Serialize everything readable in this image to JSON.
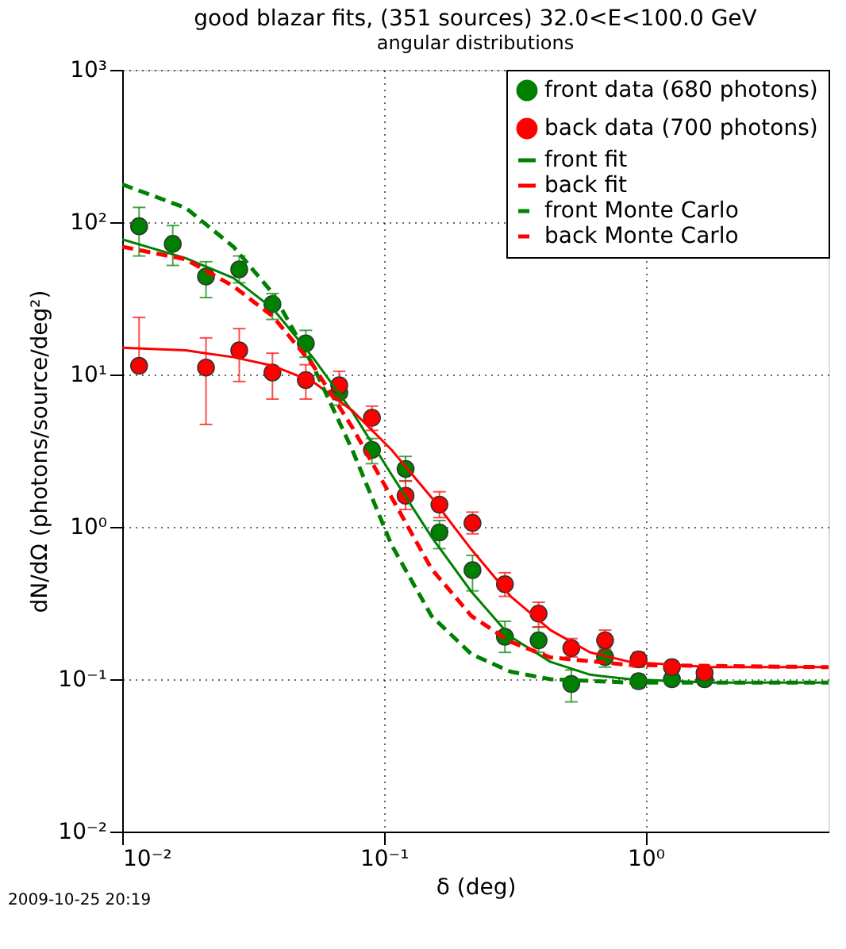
{
  "chart_data": {
    "type": "line",
    "title": "good blazar fits, (351 sources) 32.0<E<100.0 GeV",
    "subtitle": "angular distributions",
    "xlabel": "δ (deg)",
    "ylabel": "dN/dΩ (photons/source/deg²)",
    "annotations": [
      "2009-10-25 20:19"
    ],
    "log": "xy",
    "grid": true,
    "legend": "top right",
    "xlim": [
      0.01,
      5
    ],
    "xticks": [
      {
        "value": 0.01,
        "label": "10⁻²"
      },
      {
        "value": 0.1,
        "label": "10⁻¹"
      },
      {
        "value": 1,
        "label": "10⁰"
      }
    ],
    "ylim": [
      0.01,
      1000
    ],
    "yticks": [
      {
        "value": 0.01,
        "label": "10⁻²"
      },
      {
        "value": 0.1,
        "label": "10⁻¹"
      },
      {
        "value": 1,
        "label": "10⁰"
      },
      {
        "value": 10,
        "label": "10¹"
      },
      {
        "value": 100,
        "label": "10²"
      },
      {
        "value": 1000,
        "label": "10³"
      }
    ],
    "series": [
      {
        "name": "front data (680 photons)",
        "type": "scatter",
        "marker": "circle",
        "color": "#008000",
        "x": [
          0.0116,
          0.0156,
          0.0209,
          0.028,
          0.0375,
          0.0503,
          0.0675,
          0.09,
          0.121,
          0.163,
          0.218,
          0.29,
          0.39,
          0.52,
          0.7,
          0.94,
          1.26,
          1.68
        ],
        "values": [
          94,
          72,
          44,
          49,
          29,
          16,
          7.6,
          3.2,
          2.4,
          0.92,
          0.52,
          0.19,
          0.18,
          0.093,
          0.14,
          0.097,
          0.1,
          0.1
        ],
        "errors": [
          [
            60,
            125
          ],
          [
            52,
            95
          ],
          [
            32,
            55
          ],
          [
            40,
            60
          ],
          [
            23,
            34
          ],
          [
            13,
            19.5
          ],
          [
            6.3,
            9
          ],
          [
            2.6,
            3.8
          ],
          [
            2,
            2.9
          ],
          [
            0.72,
            1.1
          ],
          [
            0.38,
            0.65
          ],
          [
            0.15,
            0.24
          ],
          [
            0.15,
            0.22
          ],
          [
            0.071,
            0.115
          ],
          [
            0.12,
            0.16
          ],
          [
            0.088,
            0.107
          ],
          [
            0.095,
            0.11
          ],
          null
        ]
      },
      {
        "name": "back data (700 photons)",
        "type": "scatter",
        "marker": "circle",
        "color": "#ff0000",
        "x": [
          0.0116,
          0.0209,
          0.028,
          0.0375,
          0.0503,
          0.0675,
          0.09,
          0.121,
          0.163,
          0.218,
          0.29,
          0.39,
          0.52,
          0.7,
          0.94,
          1.26,
          1.68
        ],
        "values": [
          11.4,
          11.1,
          14.4,
          10.3,
          9.2,
          8.5,
          5.2,
          1.6,
          1.4,
          1.06,
          0.42,
          0.27,
          0.16,
          0.18,
          0.135,
          0.12,
          0.11
        ],
        "errors": [
          [
            11.4,
            23.7
          ],
          [
            4.7,
            17.4
          ],
          [
            9,
            20
          ],
          [
            6.9,
            13.8
          ],
          [
            6.9,
            11.6
          ],
          [
            7,
            10.5
          ],
          [
            4.3,
            6.2
          ],
          [
            1.3,
            2
          ],
          [
            1.15,
            1.7
          ],
          [
            0.9,
            1.25
          ],
          [
            0.35,
            0.5
          ],
          [
            0.22,
            0.32
          ],
          [
            0.14,
            0.185
          ],
          [
            0.155,
            0.21
          ],
          [
            0.12,
            0.15
          ],
          [
            0.11,
            0.13
          ],
          null
        ]
      },
      {
        "name": "front fit",
        "marker": "none",
        "line_style": "solid",
        "color": "#008000",
        "x": [
          0.01,
          0.0175,
          0.0266,
          0.0377,
          0.0534,
          0.0757,
          0.107,
          0.152,
          0.216,
          0.305,
          0.433,
          0.614,
          0.87,
          1.75,
          5
        ],
        "values": [
          77,
          58,
          43,
          27,
          13,
          5.7,
          2.2,
          0.86,
          0.375,
          0.19,
          0.13,
          0.107,
          0.1,
          0.095,
          0.095
        ]
      },
      {
        "name": "back fit",
        "marker": "none",
        "line_style": "solid",
        "color": "#ff0000",
        "x": [
          0.01,
          0.0175,
          0.0266,
          0.0377,
          0.0534,
          0.0757,
          0.107,
          0.152,
          0.216,
          0.305,
          0.433,
          0.614,
          0.87,
          1.75,
          5
        ],
        "values": [
          15,
          14.4,
          13,
          11.4,
          9,
          5.8,
          3.2,
          1.56,
          0.71,
          0.35,
          0.21,
          0.15,
          0.13,
          0.12,
          0.12
        ]
      },
      {
        "name": "front Monte Carlo",
        "marker": "none",
        "line_style": "dashed",
        "color": "#008000",
        "x": [
          0.01,
          0.0175,
          0.0266,
          0.0377,
          0.0534,
          0.0757,
          0.107,
          0.152,
          0.216,
          0.305,
          0.433,
          0.87,
          5
        ],
        "values": [
          177,
          124,
          69,
          34,
          11.6,
          3.2,
          0.76,
          0.26,
          0.146,
          0.112,
          0.1,
          0.095,
          0.095
        ]
      },
      {
        "name": "back Monte Carlo",
        "marker": "none",
        "line_style": "dashed",
        "color": "#ff0000",
        "x": [
          0.01,
          0.0175,
          0.0266,
          0.0377,
          0.0534,
          0.0757,
          0.107,
          0.152,
          0.216,
          0.305,
          0.433,
          0.87,
          5
        ],
        "values": [
          69,
          57,
          38,
          24,
          11.6,
          4.5,
          1.56,
          0.53,
          0.26,
          0.176,
          0.139,
          0.124,
          0.12
        ]
      }
    ]
  }
}
